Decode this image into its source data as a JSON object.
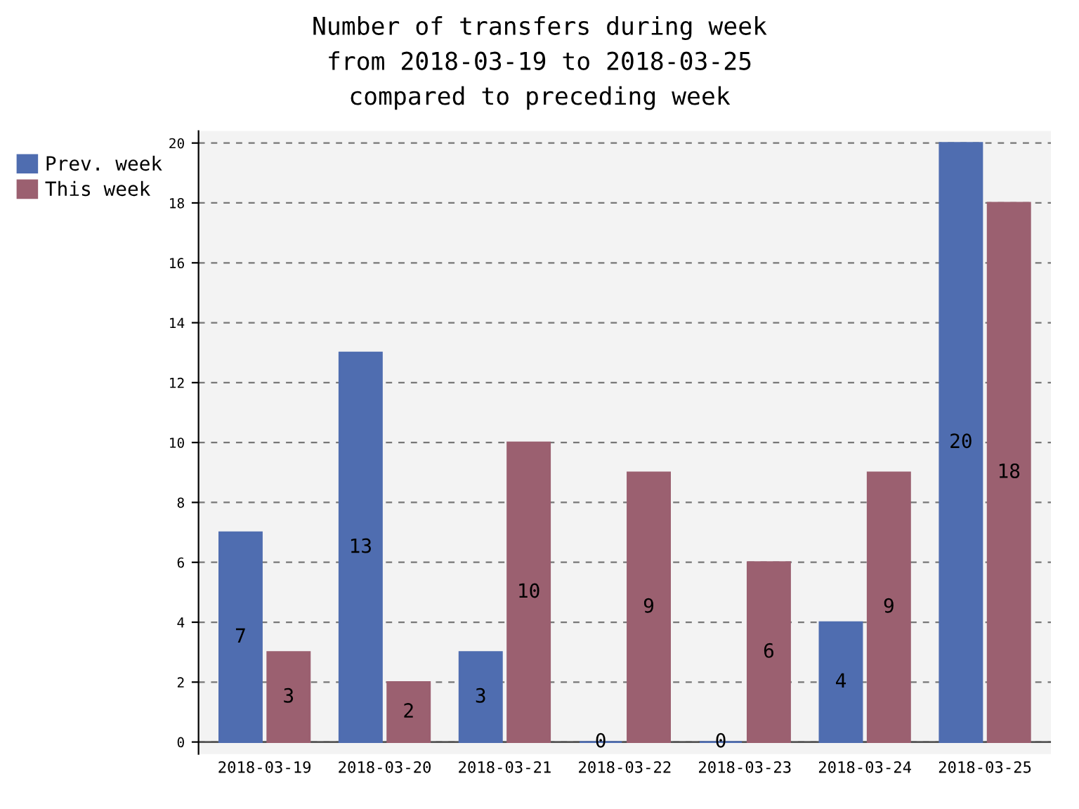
{
  "chart_data": {
    "type": "bar",
    "title": "Number of transfers during week\nfrom 2018-03-19 to 2018-03-25\ncompared to preceding week",
    "categories": [
      "2018-03-19",
      "2018-03-20",
      "2018-03-21",
      "2018-03-22",
      "2018-03-23",
      "2018-03-24",
      "2018-03-25"
    ],
    "series": [
      {
        "name": "Prev. week",
        "color": "#4f6db0",
        "values": [
          7,
          13,
          3,
          0,
          0,
          4,
          20
        ]
      },
      {
        "name": "This week",
        "color": "#9b6070",
        "values": [
          3,
          2,
          10,
          9,
          6,
          9,
          18
        ]
      }
    ],
    "ylim": [
      -0.4,
      20.4
    ],
    "yticks": [
      0,
      2,
      4,
      6,
      8,
      10,
      12,
      14,
      16,
      18,
      20
    ],
    "grid": "y",
    "legend": "top left",
    "data_labels": true
  }
}
